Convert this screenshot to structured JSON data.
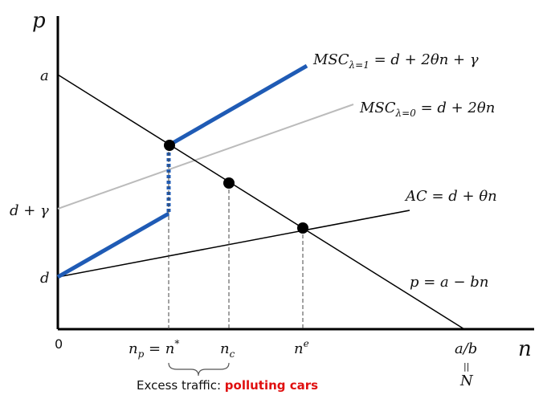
{
  "axes": {
    "y_label": "p",
    "x_label": "n",
    "origin": "0"
  },
  "y_labels": {
    "a": "a",
    "d_plus_gamma": "d + γ",
    "d": "d"
  },
  "x_labels": {
    "n_star": {
      "base": "n",
      "sub": "p",
      "mid": " = n",
      "sup": "*"
    },
    "n_c": {
      "base": "n",
      "sub": "c"
    },
    "n_e": {
      "base": "n",
      "sup": "e"
    },
    "a_over_b": "a/b",
    "equals": "||",
    "N": "N"
  },
  "curves": {
    "msc1": {
      "name": "MSC",
      "sub": "λ=1",
      "equation": " = d + 2θn + γ"
    },
    "msc0": {
      "name": "MSC",
      "sub": "λ=0",
      "equation": " = d + 2θn"
    },
    "ac": "AC = d + θn",
    "demand": "p = a − bn"
  },
  "caption": {
    "text": "Excess traffic: ",
    "highlight": "polluting cars"
  }
}
